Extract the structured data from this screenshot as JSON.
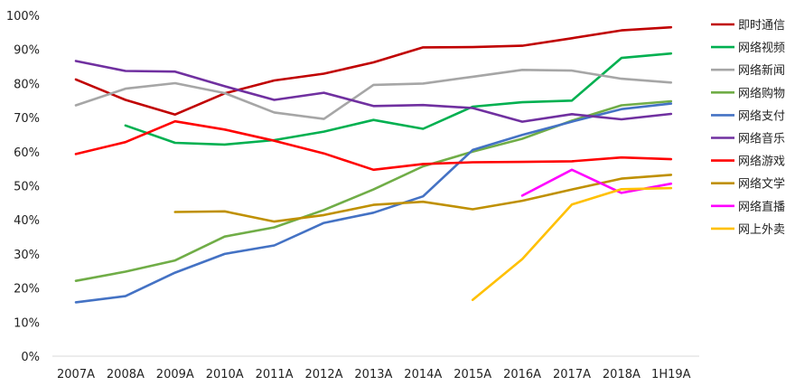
{
  "chart_data": {
    "type": "line",
    "title": "",
    "xlabel": "",
    "ylabel": "",
    "ylim": [
      0,
      100
    ],
    "y_unit": "%",
    "y_ticks": [
      0,
      10,
      20,
      30,
      40,
      50,
      60,
      70,
      80,
      90,
      100
    ],
    "grid": false,
    "legend_position": "right",
    "categories": [
      "2007A",
      "2008A",
      "2009A",
      "2010A",
      "2011A",
      "2012A",
      "2013A",
      "2014A",
      "2015A",
      "2016A",
      "2017A",
      "2018A",
      "1H19A"
    ],
    "series": [
      {
        "name": "即时通信",
        "color": "#C00000",
        "values": [
          81.2,
          75.2,
          70.9,
          77.1,
          80.9,
          82.9,
          86.2,
          90.6,
          90.7,
          91.1,
          93.3,
          95.6,
          96.5
        ]
      },
      {
        "name": "网络视频",
        "color": "#00B050",
        "values": [
          null,
          67.7,
          62.6,
          62.1,
          63.4,
          65.9,
          69.3,
          66.7,
          73.2,
          74.5,
          75.0,
          87.5,
          88.8
        ]
      },
      {
        "name": "网络新闻",
        "color": "#A6A6A6",
        "values": [
          73.6,
          78.5,
          80.1,
          77.2,
          71.5,
          69.6,
          79.6,
          80.0,
          82.0,
          84.0,
          83.8,
          81.4,
          80.3
        ]
      },
      {
        "name": "网络购物",
        "color": "#70AD47",
        "values": [
          22.1,
          24.8,
          28.1,
          35.1,
          37.8,
          42.9,
          48.9,
          55.7,
          60.0,
          63.8,
          69.1,
          73.6,
          74.8
        ]
      },
      {
        "name": "网络支付",
        "color": "#4472C4",
        "values": [
          15.8,
          17.6,
          24.5,
          30.0,
          32.5,
          39.1,
          42.1,
          46.9,
          60.5,
          64.9,
          68.8,
          72.5,
          74.1
        ]
      },
      {
        "name": "网络音乐",
        "color": "#7030A0",
        "values": [
          86.6,
          83.7,
          83.5,
          79.2,
          75.2,
          77.3,
          73.4,
          73.7,
          72.8,
          68.8,
          71.0,
          69.5,
          71.1
        ]
      },
      {
        "name": "网络游戏",
        "color": "#FF0000",
        "values": [
          59.3,
          62.8,
          68.9,
          66.5,
          63.2,
          59.5,
          54.7,
          56.4,
          56.9,
          57.0,
          57.2,
          58.3,
          57.8
        ]
      },
      {
        "name": "网络文学",
        "color": "#BF9000",
        "values": [
          null,
          null,
          42.3,
          42.5,
          39.5,
          41.4,
          44.4,
          45.3,
          43.1,
          45.6,
          48.9,
          52.1,
          53.2
        ]
      },
      {
        "name": "网络直播",
        "color": "#FF00FF",
        "values": [
          null,
          null,
          null,
          null,
          null,
          null,
          null,
          null,
          null,
          47.1,
          54.7,
          47.9,
          50.6
        ]
      },
      {
        "name": "网上外卖",
        "color": "#FFC000",
        "values": [
          null,
          null,
          null,
          null,
          null,
          null,
          null,
          null,
          16.5,
          28.5,
          44.5,
          49.0,
          49.3
        ]
      }
    ]
  }
}
